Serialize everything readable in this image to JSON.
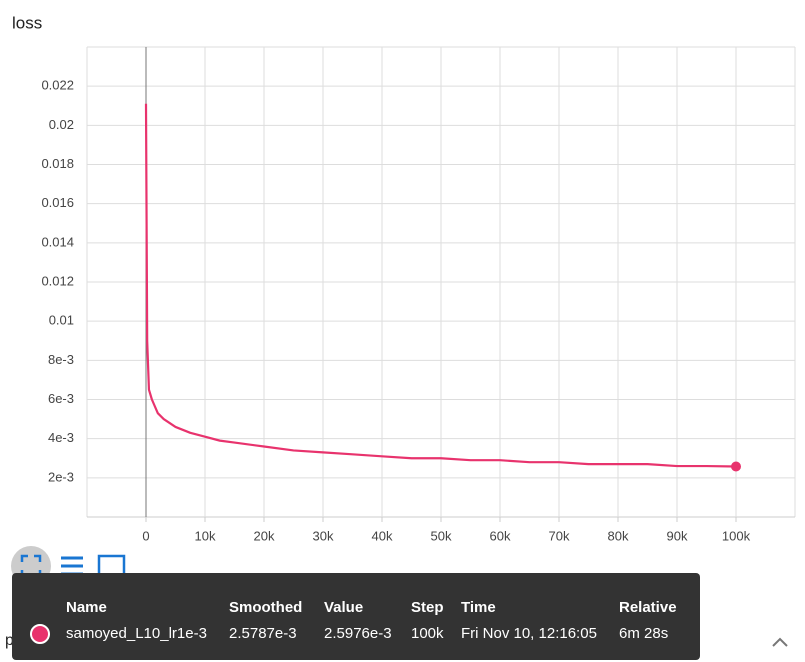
{
  "chart_data": {
    "type": "line",
    "title": "loss",
    "x": [
      0,
      200,
      500,
      1000,
      2000,
      3000,
      5000,
      7500,
      10000,
      12500,
      15000,
      20000,
      25000,
      30000,
      35000,
      40000,
      45000,
      50000,
      55000,
      60000,
      65000,
      70000,
      75000,
      80000,
      85000,
      90000,
      95000,
      100000
    ],
    "series": [
      {
        "name": "samoyed_L10_lr1e-3",
        "color": "#e8336d",
        "values": [
          0.0211,
          0.009,
          0.0065,
          0.006,
          0.0053,
          0.005,
          0.0046,
          0.0043,
          0.0041,
          0.0039,
          0.0038,
          0.0036,
          0.0034,
          0.0033,
          0.0032,
          0.0031,
          0.003,
          0.003,
          0.0029,
          0.0029,
          0.0028,
          0.0028,
          0.0027,
          0.0027,
          0.0027,
          0.0026,
          0.0026,
          0.0025787
        ]
      }
    ],
    "xlim": [
      -10000,
      110000
    ],
    "xticks": [
      0,
      {
        "value": 10000,
        "label": "10k"
      },
      {
        "value": 20000,
        "label": "20k"
      },
      {
        "value": 30000,
        "label": "30k"
      },
      {
        "value": 40000,
        "label": "40k"
      },
      {
        "value": 50000,
        "label": "50k"
      },
      {
        "value": 60000,
        "label": "60k"
      },
      {
        "value": 70000,
        "label": "70k"
      },
      {
        "value": 80000,
        "label": "80k"
      },
      {
        "value": 90000,
        "label": "90k"
      },
      {
        "value": 100000,
        "label": "100k"
      }
    ],
    "ylim": [
      0,
      0.024
    ],
    "yticks": [
      {
        "value": 0.002,
        "label": "2e-3"
      },
      {
        "value": 0.004,
        "label": "4e-3"
      },
      {
        "value": 0.006,
        "label": "6e-3"
      },
      {
        "value": 0.008,
        "label": "8e-3"
      },
      0.01,
      0.012,
      0.014,
      0.016,
      0.018,
      0.02,
      0.022
    ],
    "grid": true
  },
  "tooltip": {
    "columns": [
      "Name",
      "Smoothed",
      "Value",
      "Step",
      "Time",
      "Relative"
    ],
    "row": [
      "2.5787e-3",
      "2.5976e-3",
      "100k",
      "Fri Nov 10, 12:16:05",
      "6m 28s"
    ]
  },
  "next_card": "psnr"
}
